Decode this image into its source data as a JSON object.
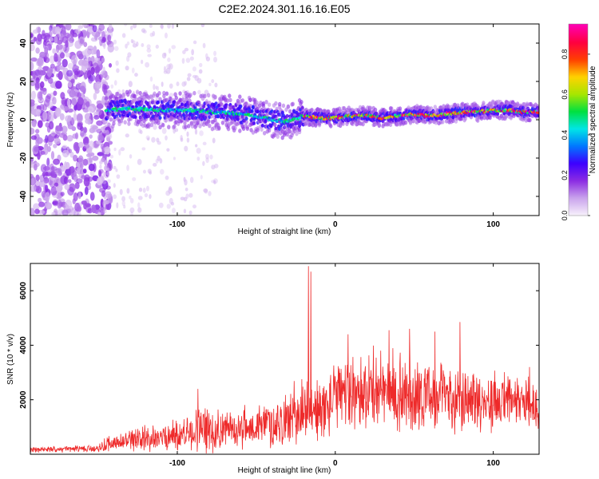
{
  "title": "C2E2.2024.301.16.16.E05",
  "chart_data": [
    {
      "type": "heatmap",
      "xlabel": "Height of straight line (km)",
      "ylabel": "Frequency (Hz)",
      "xlim": [
        -193,
        129
      ],
      "ylim": [
        -50,
        50
      ],
      "xticks": [
        -100,
        0,
        100
      ],
      "yticks": [
        -40,
        -20,
        0,
        20,
        40
      ],
      "grid": false,
      "colorbar": {
        "label": "Normalized spectral amplitude",
        "ticks": [
          0.0,
          0.2,
          0.4,
          0.6,
          0.8
        ],
        "range": [
          0,
          0.95
        ],
        "colors": [
          "#f7f0fb",
          "#c9a2ec",
          "#8b2be2",
          "#3c00ff",
          "#0078ff",
          "#00e6e6",
          "#00e040",
          "#a8e600",
          "#ffd200",
          "#ff4000",
          "#ff0040",
          "#ff00b0"
        ]
      },
      "ridge": {
        "x": [
          -145,
          -130,
          -115,
          -100,
          -90,
          -80,
          -70,
          -60,
          -50,
          -40,
          -30,
          -20,
          -10,
          0,
          10,
          20,
          30,
          40,
          50,
          60,
          70,
          80,
          90,
          100,
          110,
          120,
          129
        ],
        "y": [
          5,
          6,
          5,
          5,
          5,
          4,
          4,
          3,
          2,
          0,
          -1,
          2,
          1,
          1,
          2,
          2,
          1,
          2,
          3,
          2,
          3,
          4,
          4,
          5,
          5,
          4,
          4
        ]
      },
      "broadband_region_x": [
        -193,
        -150
      ]
    },
    {
      "type": "line",
      "xlabel": "Height of straight line (km)",
      "ylabel": "SNR (10 * v/v)",
      "xlim": [
        -193,
        129
      ],
      "ylim": [
        0,
        7000
      ],
      "xticks": [
        -100,
        0,
        100
      ],
      "yticks": [
        2000,
        4000,
        6000
      ],
      "grid": false,
      "series": [
        {
          "color": "#ee2a2a",
          "envelope": {
            "x": [
              -193,
              -150,
              -145,
              -120,
              -100,
              -90,
              -85,
              -70,
              -50,
              -30,
              -18,
              -16,
              -14,
              -10,
              -5,
              0,
              10,
              20,
              30,
              40,
              50,
              60,
              70,
              80,
              90,
              100,
              110,
              120,
              129
            ],
            "base": [
              150,
              200,
              350,
              500,
              650,
              750,
              800,
              850,
              950,
              1150,
              1600,
              1600,
              1500,
              1400,
              1700,
              2000,
              2200,
              2200,
              2200,
              2100,
              2100,
              2000,
              2000,
              2000,
              1900,
              1800,
              1800,
              1800,
              1700
            ],
            "amp": [
              120,
              150,
              350,
              550,
              700,
              900,
              1100,
              800,
              900,
              1200,
              1500,
              1500,
              1300,
              1400,
              1400,
              1500,
              1600,
              1700,
              1700,
              1700,
              1700,
              1500,
              1500,
              1500,
              1400,
              1300,
              1200,
              1200,
              1200
            ]
          },
          "spikes": [
            {
              "x": -87,
              "y": 2400
            },
            {
              "x": -17,
              "y": 6900
            },
            {
              "x": -15.5,
              "y": 6700
            },
            {
              "x": 8,
              "y": 4400
            },
            {
              "x": 34,
              "y": 4550
            },
            {
              "x": 47,
              "y": 4600
            },
            {
              "x": 63,
              "y": 4500
            },
            {
              "x": 79,
              "y": 4850
            },
            {
              "x": 123,
              "y": 3200
            }
          ]
        }
      ]
    }
  ]
}
